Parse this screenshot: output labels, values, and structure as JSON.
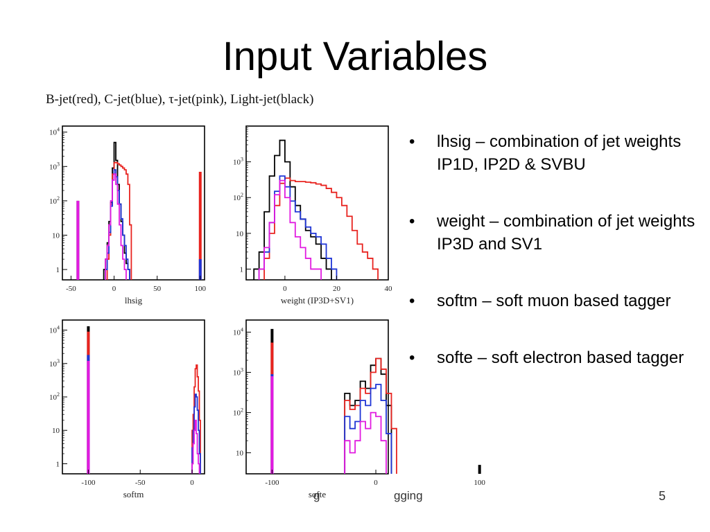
{
  "slide": {
    "title": "Input Variables",
    "caption": "B-jet(red), C-jet(blue), τ-jet(pink), Light-jet(black)",
    "bullets": [
      {
        "text": "lhsig – combination of jet weights IP1D, IP2D & SVBU"
      },
      {
        "text": "weight – combination of jet weights IP3D and SV1"
      },
      {
        "text": "softm – soft muon based tagger"
      },
      {
        "text": "softe – soft electron based tagger"
      }
    ],
    "bullet_glyph": "•",
    "footer_fragment": "gging",
    "footer_mark": "g",
    "page_number": "5"
  },
  "colors": {
    "b_jet": "#e8231f",
    "c_jet": "#1f35d6",
    "tau_jet": "#e11be0",
    "light_jet": "#000000"
  },
  "chart_data": [
    {
      "type": "histogram",
      "log_y": true,
      "xlabel": "lhsig",
      "xlim": [
        -60,
        105
      ],
      "ylim": [
        0.5,
        15000
      ],
      "xticks": [
        -50,
        0,
        50,
        100
      ],
      "xtick_labels": [
        "-50",
        "0",
        "50",
        "100"
      ],
      "ytick_values": [
        1,
        10,
        100,
        1000,
        10000
      ],
      "ytick_labels": [
        "1",
        "10",
        "10 2",
        "10 3",
        "10 4"
      ],
      "series": [
        {
          "key": "light_jet",
          "spikes": [
            [
              -42,
              100
            ]
          ],
          "edges": [
            -12,
            -10,
            -8,
            -6,
            -4,
            -2,
            0,
            2,
            4,
            6,
            8,
            10,
            12,
            14,
            16,
            18
          ],
          "values": [
            1,
            2,
            6,
            25,
            90,
            900,
            5000,
            1500,
            300,
            80,
            25,
            10,
            3,
            1.5,
            1
          ]
        },
        {
          "key": "b_jet",
          "spikes": [
            [
              100,
              700
            ]
          ],
          "edges": [
            -8,
            -6,
            -4,
            -2,
            0,
            2,
            4,
            6,
            8,
            10,
            12,
            14,
            16,
            18,
            20
          ],
          "values": [
            2,
            10,
            80,
            600,
            1300,
            1300,
            1200,
            1100,
            1000,
            900,
            800,
            600,
            300,
            20
          ]
        },
        {
          "key": "c_jet",
          "spikes": [
            [
              100,
              2
            ]
          ],
          "edges": [
            -10,
            -8,
            -6,
            -4,
            -2,
            0,
            2,
            4,
            6,
            8,
            10,
            12,
            14,
            16,
            18
          ],
          "values": [
            1,
            3,
            12,
            70,
            400,
            800,
            500,
            200,
            80,
            30,
            10,
            5,
            2,
            1
          ]
        },
        {
          "key": "tau_jet",
          "spikes": [
            [
              -42,
              100
            ]
          ],
          "edges": [
            -10,
            -8,
            -6,
            -4,
            -2,
            0,
            2,
            4,
            6,
            8,
            10,
            12,
            14
          ],
          "values": [
            2,
            5,
            20,
            100,
            400,
            600,
            300,
            80,
            20,
            5,
            2,
            1
          ]
        }
      ]
    },
    {
      "type": "histogram",
      "log_y": true,
      "xlabel": "weight (IP3D+SV1)",
      "xlim": [
        -15,
        40
      ],
      "ylim": [
        0.5,
        10000
      ],
      "xticks": [
        0,
        20,
        40
      ],
      "xtick_labels": [
        "0",
        "20",
        "40"
      ],
      "ytick_values": [
        1,
        10,
        100,
        1000
      ],
      "ytick_labels": [
        "1",
        "10",
        "10 2",
        "10 3"
      ],
      "series": [
        {
          "key": "light_jet",
          "spikes": [],
          "edges": [
            -12,
            -10,
            -8,
            -6,
            -4,
            -2,
            0,
            2,
            4,
            6,
            8,
            10,
            12,
            14,
            16,
            18
          ],
          "values": [
            1,
            3,
            40,
            400,
            1500,
            4000,
            1000,
            200,
            60,
            25,
            12,
            8,
            5,
            2,
            1
          ]
        },
        {
          "key": "b_jet",
          "spikes": [],
          "edges": [
            -8,
            -6,
            -4,
            -2,
            0,
            2,
            4,
            6,
            8,
            10,
            12,
            14,
            16,
            18,
            20,
            22,
            24,
            26,
            28,
            30,
            32,
            34,
            36
          ],
          "values": [
            2,
            10,
            60,
            250,
            350,
            300,
            280,
            280,
            270,
            260,
            240,
            220,
            180,
            140,
            100,
            60,
            30,
            12,
            5,
            3,
            2,
            1
          ]
        },
        {
          "key": "c_jet",
          "spikes": [],
          "edges": [
            -10,
            -8,
            -6,
            -4,
            -2,
            0,
            2,
            4,
            6,
            8,
            10,
            12,
            14,
            16,
            18,
            20
          ],
          "values": [
            1,
            3,
            20,
            150,
            400,
            200,
            80,
            40,
            25,
            15,
            10,
            8,
            5,
            2,
            1
          ]
        },
        {
          "key": "tau_jet",
          "spikes": [],
          "edges": [
            -10,
            -8,
            -6,
            -4,
            -2,
            0,
            2,
            4,
            6,
            8,
            10,
            12,
            14
          ],
          "values": [
            1,
            4,
            20,
            120,
            300,
            100,
            20,
            8,
            4,
            2,
            1,
            1
          ]
        }
      ]
    },
    {
      "type": "histogram",
      "log_y": true,
      "xlabel": "softm",
      "xlim": [
        -125,
        12
      ],
      "ylim": [
        0.5,
        20000
      ],
      "xticks": [
        -100,
        -50,
        0
      ],
      "xtick_labels": [
        "-100",
        "-50",
        "0"
      ],
      "ytick_values": [
        1,
        10,
        100,
        1000,
        10000
      ],
      "ytick_labels": [
        "1",
        "10",
        "10 2",
        "10 3",
        "10 4"
      ],
      "series": [
        {
          "key": "light_jet",
          "spikes": [
            [
              -100,
              13000
            ]
          ],
          "edges": [],
          "values": []
        },
        {
          "key": "b_jet",
          "spikes": [
            [
              -100,
              9000
            ]
          ],
          "edges": [
            0,
            1,
            2,
            3,
            4,
            5,
            6,
            7,
            8
          ],
          "values": [
            10,
            30,
            200,
            700,
            900,
            400,
            150,
            20
          ]
        },
        {
          "key": "c_jet",
          "spikes": [
            [
              -100,
              1800
            ]
          ],
          "edges": [
            0,
            1,
            2,
            3,
            4,
            5,
            6,
            7,
            8
          ],
          "values": [
            3,
            10,
            50,
            120,
            100,
            40,
            10,
            2
          ]
        },
        {
          "key": "tau_jet",
          "spikes": [
            [
              -100,
              1200
            ]
          ],
          "edges": [
            0,
            1,
            2,
            3,
            4,
            5,
            6,
            7
          ],
          "values": [
            1,
            4,
            10,
            20,
            8,
            2,
            1
          ]
        }
      ]
    },
    {
      "type": "histogram",
      "log_y": true,
      "xlabel": "softe",
      "xlim": [
        -125,
        12
      ],
      "ylim": [
        3,
        20000
      ],
      "xticks": [
        -100,
        0,
        100
      ],
      "xtick_labels": [
        "-100",
        "0",
        "100"
      ],
      "ytick_values": [
        10,
        100,
        1000,
        10000
      ],
      "ytick_labels": [
        "10",
        "10 2",
        "10 3",
        "10 4"
      ],
      "series": [
        {
          "key": "light_jet",
          "spikes": [
            [
              -100,
              12000
            ],
            [
              100,
              5
            ]
          ],
          "edges": [
            -30,
            -25,
            -20,
            -15,
            -10,
            -5,
            0,
            5,
            10,
            15
          ],
          "values": [
            300,
            150,
            200,
            600,
            400,
            1500,
            2200,
            900,
            150
          ]
        },
        {
          "key": "b_jet",
          "spikes": [
            [
              -100,
              5500
            ]
          ],
          "edges": [
            -30,
            -25,
            -20,
            -15,
            -10,
            -5,
            0,
            5,
            10,
            15,
            20
          ],
          "values": [
            200,
            120,
            150,
            400,
            300,
            1000,
            2200,
            1200,
            300,
            40
          ]
        },
        {
          "key": "c_jet",
          "spikes": [
            [
              -100,
              900
            ]
          ],
          "edges": [
            -30,
            -25,
            -20,
            -15,
            -10,
            -5,
            0,
            5,
            10,
            15
          ],
          "values": [
            80,
            40,
            60,
            200,
            150,
            400,
            500,
            200,
            30
          ]
        },
        {
          "key": "tau_jet",
          "spikes": [
            [
              -100,
              800
            ]
          ],
          "edges": [
            -30,
            -25,
            -20,
            -15,
            -10,
            -5,
            0,
            5,
            10
          ],
          "values": [
            20,
            10,
            20,
            60,
            40,
            100,
            80,
            20
          ]
        }
      ]
    }
  ]
}
